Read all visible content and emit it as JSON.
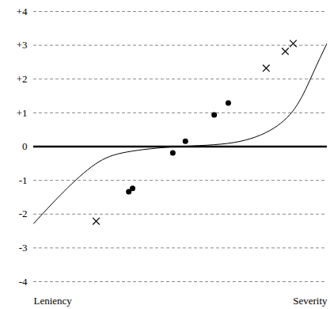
{
  "chart_data": {
    "type": "scatter",
    "xlim": [
      0,
      10
    ],
    "xticks": [
      {
        "value": 0,
        "label": "Leniency"
      },
      {
        "value": 10,
        "label": "Severity"
      }
    ],
    "ylim": [
      -4,
      4
    ],
    "yticks": [
      {
        "value": 4,
        "label": "+4"
      },
      {
        "value": 3,
        "label": "+3"
      },
      {
        "value": 2,
        "label": "+2"
      },
      {
        "value": 1,
        "label": "+1"
      },
      0,
      -1,
      -2,
      -3,
      -4
    ],
    "grid": true,
    "series": [
      {
        "type": "line",
        "color": "#000000",
        "line_style": "solid",
        "x": [
          0,
          1.02,
          2.1,
          3.18,
          4.93,
          6.82,
          8.17,
          8.98,
          9.52,
          10
        ],
        "values": [
          -2.28,
          -1.34,
          -0.52,
          -0.16,
          0,
          0.12,
          0.54,
          1.24,
          2.18,
          3.07
        ]
      },
      {
        "type": "scatter",
        "color": "#000000",
        "marker": "circle",
        "x": [
          3.24,
          3.37,
          4.74,
          5.17,
          6.15,
          6.63
        ],
        "values": [
          -1.34,
          -1.24,
          -0.19,
          0.16,
          0.94,
          1.29
        ]
      },
      {
        "type": "scatter",
        "color": "#000000",
        "marker": "cross",
        "x": [
          2.13,
          7.92,
          8.57,
          8.84
        ],
        "values": [
          -2.21,
          2.32,
          2.82,
          3.05
        ]
      }
    ]
  }
}
